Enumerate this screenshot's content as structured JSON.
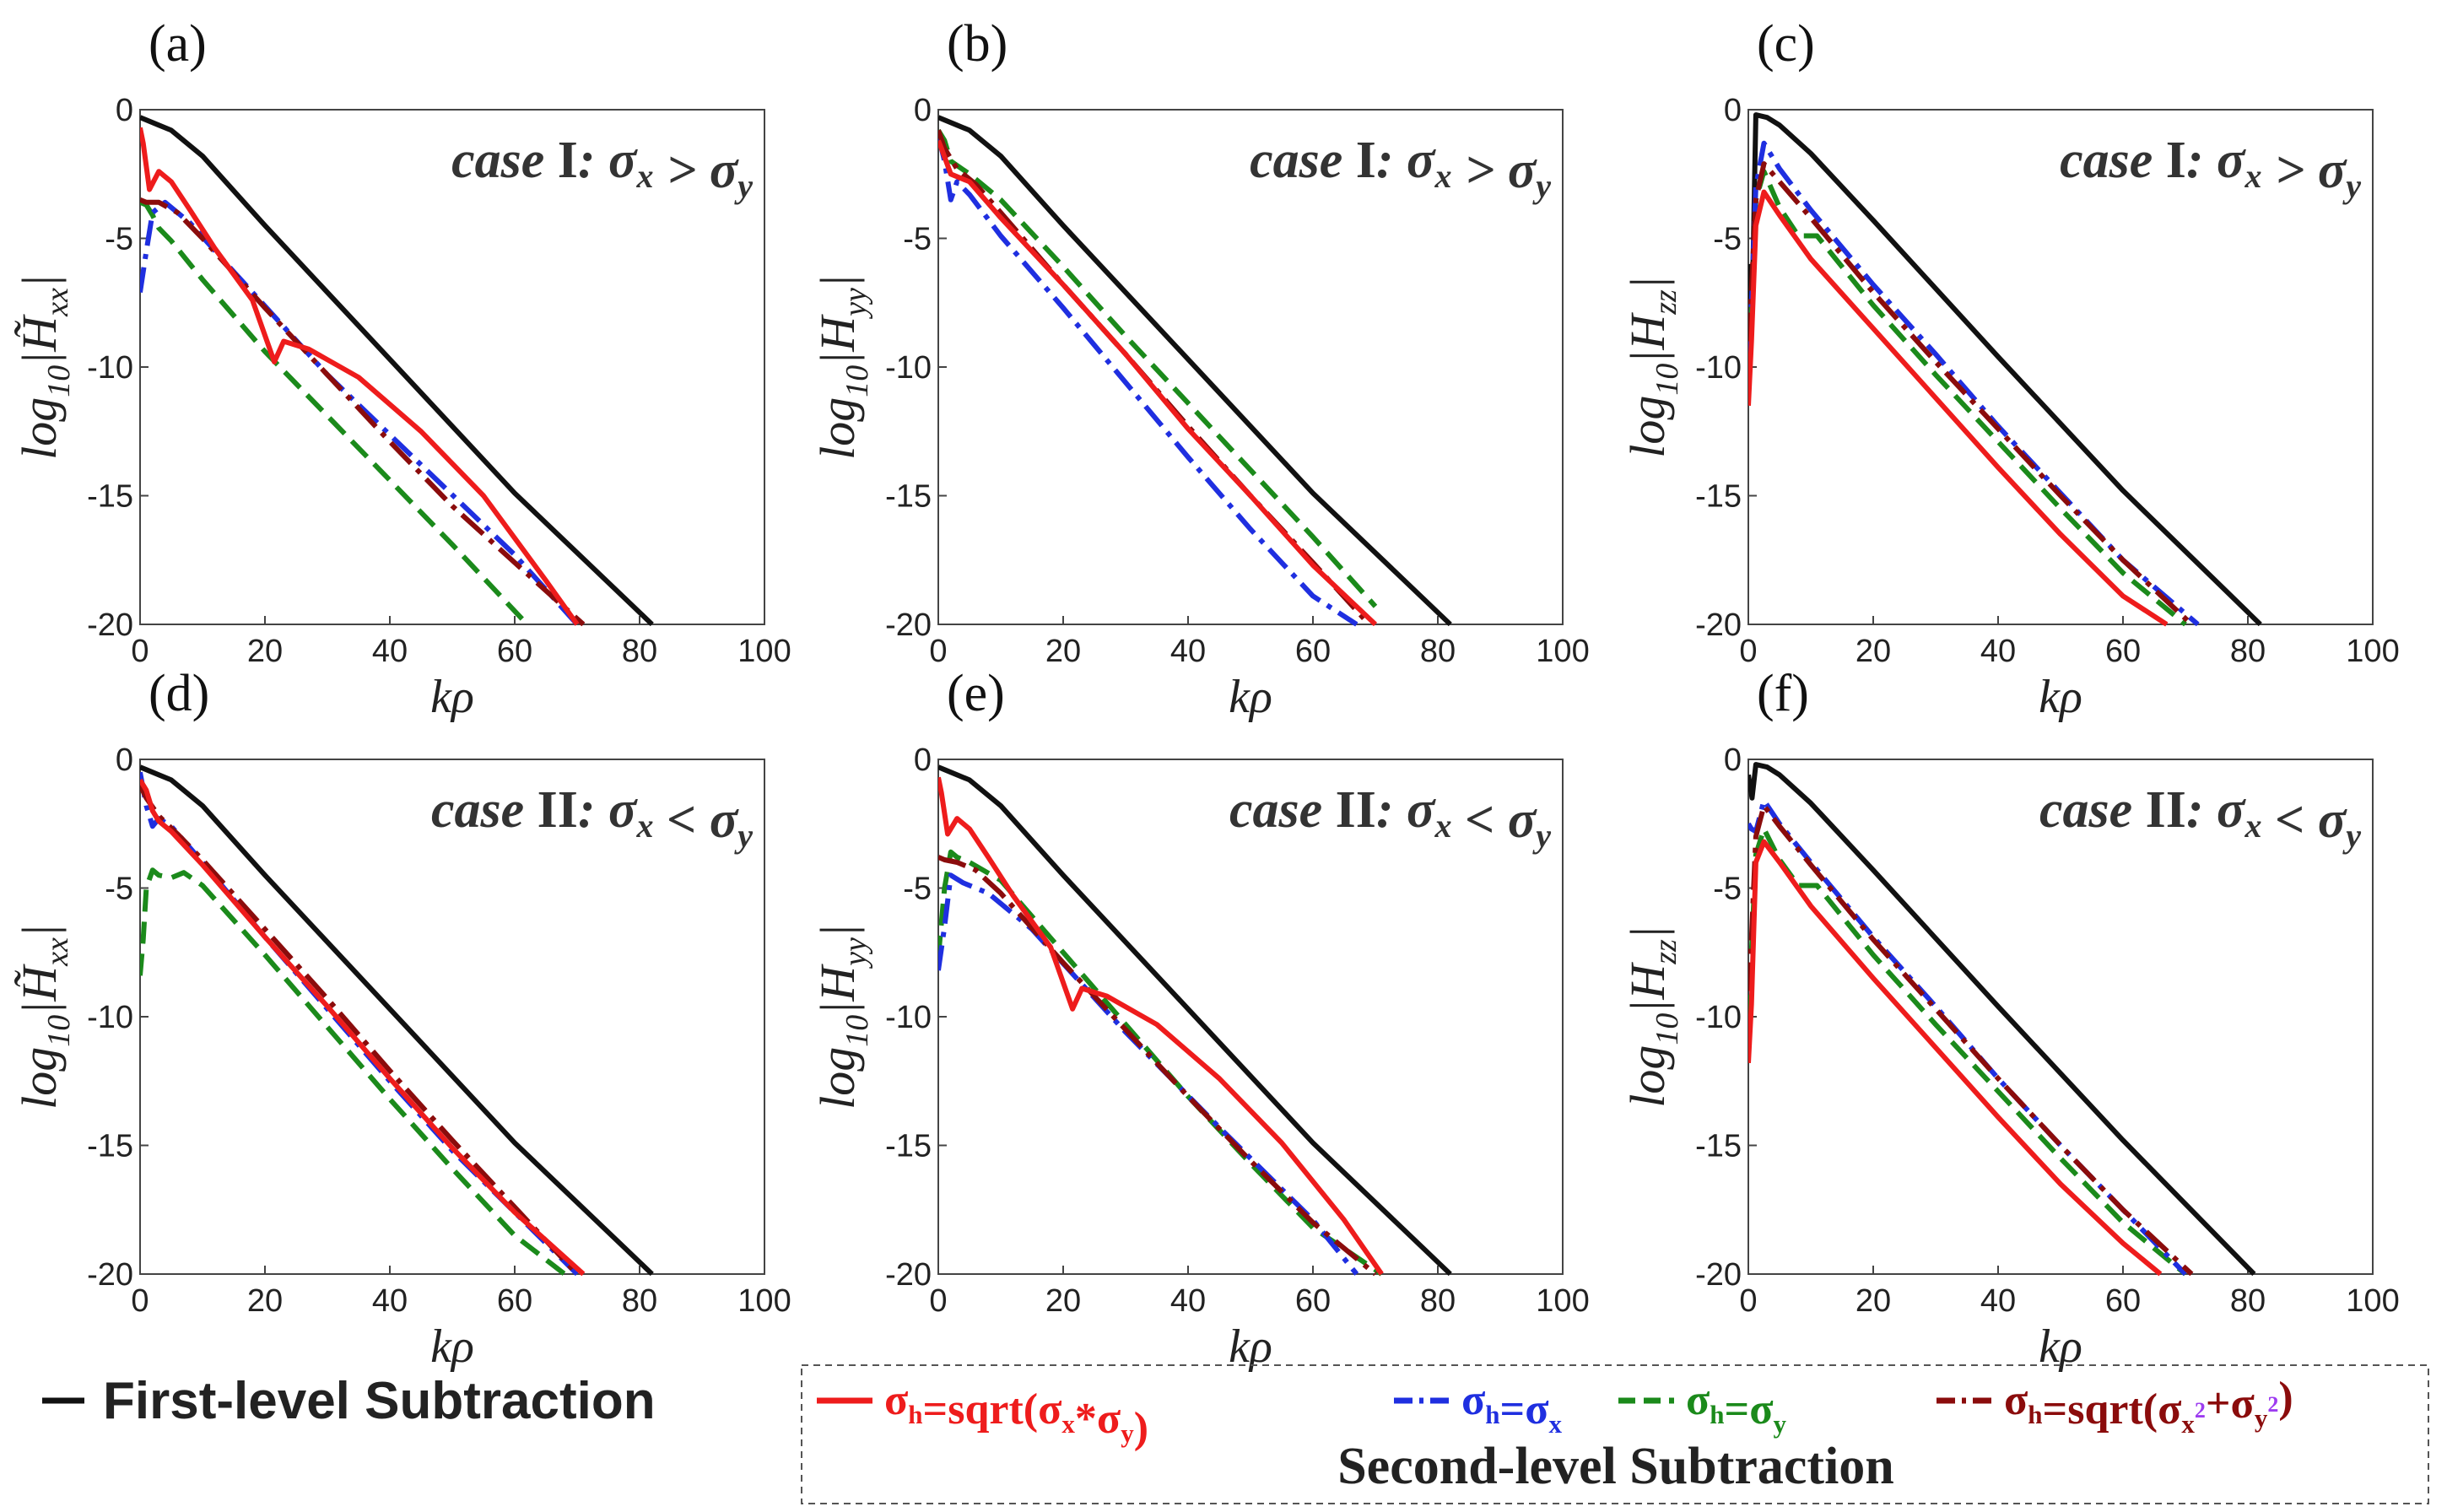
{
  "figure": {
    "legend_first": "First-level Subtraction",
    "legend_second_title": "Second-level Subtraction",
    "colors": {
      "first": "#111111",
      "red": "#ee1c1c",
      "blue": "#1f2fe0",
      "green": "#1b8a1b",
      "darkred": "#8b0c0c"
    },
    "series_legend": [
      {
        "key": "red",
        "name": "σh=sqrt(σx*σy)",
        "dash": "solid"
      },
      {
        "key": "blue",
        "name": "σh=σx",
        "dash": "dashdot"
      },
      {
        "key": "green",
        "name": "σh=σy",
        "dash": "dash"
      },
      {
        "key": "darkred",
        "name": "σh=sqrt(σx²+σy²)",
        "dash": "dashdot"
      }
    ]
  },
  "chart_data": [
    {
      "type": "line",
      "label": "(a)",
      "case": "case I: σx > σy",
      "ylabel": "log10|H̃xx|",
      "xlabel": "kρ",
      "xlim": [
        0,
        100
      ],
      "ylim": [
        -20,
        0
      ],
      "xticks": [
        "0",
        "20",
        "40",
        "60",
        "80",
        "100"
      ],
      "yticks": [
        "0",
        "-5",
        "-10",
        "-15",
        "-20"
      ],
      "series": [
        {
          "name": "First-level Subtraction",
          "key": "first",
          "x": [
            0,
            1,
            3,
            5,
            10,
            20,
            40,
            60,
            82
          ],
          "y": [
            -0.3,
            -0.4,
            -0.6,
            -0.8,
            -1.8,
            -4.5,
            -9.7,
            -14.9,
            -20
          ]
        },
        {
          "name": "σh=sqrt(σx*σy)",
          "key": "red",
          "x": [
            0,
            0.5,
            1.5,
            3,
            5,
            8,
            12,
            18,
            21.5,
            23,
            27,
            35,
            45,
            55,
            65,
            70
          ],
          "y": [
            -0.7,
            -1.3,
            -3.1,
            -2.4,
            -2.8,
            -3.9,
            -5.4,
            -7.4,
            -9.8,
            -9.0,
            -9.3,
            -10.4,
            -12.5,
            -15.0,
            -18.3,
            -20
          ]
        },
        {
          "name": "σh=σx",
          "key": "blue",
          "x": [
            0,
            1,
            2,
            4,
            8,
            15,
            30,
            45,
            60,
            70
          ],
          "y": [
            -7.1,
            -5.5,
            -4.0,
            -3.6,
            -4.4,
            -6.3,
            -10.3,
            -13.8,
            -17.3,
            -20
          ]
        },
        {
          "name": "σh=σy",
          "key": "green",
          "x": [
            0,
            1,
            2,
            3,
            5,
            10,
            20,
            30,
            40,
            50,
            62
          ],
          "y": [
            -3.6,
            -3.7,
            -4.1,
            -4.6,
            -5.1,
            -6.6,
            -9.4,
            -11.9,
            -14.4,
            -16.9,
            -20
          ]
        },
        {
          "name": "σh=sqrt(σx²+σy²)",
          "key": "darkred",
          "x": [
            0,
            1,
            3,
            6,
            10,
            20,
            30,
            40,
            50,
            60,
            71
          ],
          "y": [
            -3.5,
            -3.6,
            -3.6,
            -4.0,
            -5.0,
            -7.7,
            -10.3,
            -12.9,
            -15.4,
            -17.6,
            -20
          ]
        }
      ]
    },
    {
      "type": "line",
      "label": "(b)",
      "case": "case I: σx > σy",
      "ylabel": "log10|Hyy|",
      "xlabel": "kρ",
      "xlim": [
        0,
        100
      ],
      "ylim": [
        -20,
        0
      ],
      "xticks": [
        "0",
        "20",
        "40",
        "60",
        "80",
        "100"
      ],
      "yticks": [
        "0",
        "-5",
        "-10",
        "-15",
        "-20"
      ],
      "series": [
        {
          "name": "First-level Subtraction",
          "key": "first",
          "x": [
            0,
            1,
            3,
            5,
            10,
            20,
            40,
            60,
            82
          ],
          "y": [
            -0.3,
            -0.4,
            -0.6,
            -0.8,
            -1.8,
            -4.5,
            -9.7,
            -14.9,
            -20
          ]
        },
        {
          "name": "σh=sqrt(σx*σy)",
          "key": "red",
          "x": [
            0,
            0.5,
            2,
            5,
            10,
            20,
            30,
            40,
            50,
            60,
            70
          ],
          "y": [
            -1.2,
            -1.5,
            -2.5,
            -2.8,
            -4.2,
            -6.8,
            -9.5,
            -12.4,
            -15.0,
            -17.7,
            -20
          ]
        },
        {
          "name": "σh=σx",
          "key": "blue",
          "x": [
            0,
            1,
            2,
            3,
            5,
            10,
            20,
            30,
            40,
            50,
            60,
            67
          ],
          "y": [
            -1.0,
            -2.0,
            -3.5,
            -2.8,
            -3.3,
            -4.9,
            -7.7,
            -10.6,
            -13.5,
            -16.3,
            -18.9,
            -20
          ]
        },
        {
          "name": "σh=σy",
          "key": "green",
          "x": [
            0,
            1,
            2,
            5,
            10,
            20,
            30,
            40,
            50,
            60,
            70
          ],
          "y": [
            -0.8,
            -1.2,
            -2.0,
            -2.5,
            -3.5,
            -6.1,
            -8.8,
            -11.4,
            -14.0,
            -16.6,
            -19.3
          ]
        },
        {
          "name": "σh=sqrt(σx²+σy²)",
          "key": "darkred",
          "x": [
            0,
            1,
            3,
            6,
            10,
            20,
            30,
            40,
            50,
            60,
            69
          ],
          "y": [
            -0.8,
            -1.5,
            -2.3,
            -2.9,
            -4.0,
            -6.8,
            -9.5,
            -12.3,
            -15.0,
            -17.6,
            -20
          ]
        }
      ]
    },
    {
      "type": "line",
      "label": "(c)",
      "case": "case I: σx > σy",
      "ylabel": "log10|Hzz|",
      "xlabel": "kρ",
      "xlim": [
        0,
        100
      ],
      "ylim": [
        -20,
        0
      ],
      "xticks": [
        "0",
        "20",
        "40",
        "60",
        "80",
        "100"
      ],
      "yticks": [
        "0",
        "-5",
        "-10",
        "-15",
        "-20"
      ],
      "series": [
        {
          "name": "First-level Subtraction",
          "key": "first",
          "x": [
            0,
            0.6,
            1.2,
            3,
            5,
            10,
            20,
            40,
            60,
            82
          ],
          "y": [
            -6.0,
            -8.0,
            -0.2,
            -0.3,
            -0.6,
            -1.7,
            -4.3,
            -9.6,
            -14.8,
            -20
          ]
        },
        {
          "name": "σh=sqrt(σx*σy)",
          "key": "red",
          "x": [
            0,
            0.5,
            1.2,
            2.5,
            5,
            10,
            20,
            30,
            40,
            50,
            60,
            67
          ],
          "y": [
            -11.5,
            -9.0,
            -4.5,
            -3.2,
            -4.1,
            -5.8,
            -8.5,
            -11.2,
            -13.9,
            -16.5,
            -18.9,
            -20
          ]
        },
        {
          "name": "σh=σx",
          "key": "blue",
          "x": [
            0,
            0.5,
            1.2,
            2.5,
            5,
            10,
            20,
            30,
            40,
            50,
            60,
            72
          ],
          "y": [
            -9.5,
            -7.5,
            -3.0,
            -1.3,
            -2.3,
            -3.9,
            -6.8,
            -9.5,
            -12.3,
            -14.9,
            -17.5,
            -20
          ]
        },
        {
          "name": "σh=σy",
          "key": "green",
          "x": [
            0,
            0.5,
            1.2,
            2.5,
            5,
            8,
            11,
            20,
            30,
            40,
            50,
            60,
            70
          ],
          "y": [
            -10.5,
            -8.0,
            -3.5,
            -2.4,
            -3.8,
            -4.9,
            -4.9,
            -7.6,
            -10.3,
            -12.9,
            -15.5,
            -18.0,
            -20
          ]
        },
        {
          "name": "σh=sqrt(σx²+σy²)",
          "key": "darkred",
          "x": [
            0,
            0.5,
            1.2,
            2.5,
            5,
            10,
            20,
            30,
            40,
            50,
            60,
            71
          ],
          "y": [
            -9.0,
            -7.0,
            -3.5,
            -2.1,
            -2.8,
            -4.2,
            -7.1,
            -9.8,
            -12.4,
            -15.0,
            -17.5,
            -20
          ]
        }
      ]
    },
    {
      "type": "line",
      "label": "(d)",
      "case": "case II: σx < σy",
      "ylabel": "log10|H̃xx|",
      "xlabel": "kρ",
      "xlim": [
        0,
        100
      ],
      "ylim": [
        -20,
        0
      ],
      "xticks": [
        "0",
        "20",
        "40",
        "60",
        "80",
        "100"
      ],
      "yticks": [
        "0",
        "-5",
        "-10",
        "-15",
        "-20"
      ],
      "series": [
        {
          "name": "First-level Subtraction",
          "key": "first",
          "x": [
            0,
            1,
            3,
            5,
            10,
            20,
            40,
            60,
            82
          ],
          "y": [
            -0.3,
            -0.4,
            -0.6,
            -0.8,
            -1.8,
            -4.5,
            -9.7,
            -14.9,
            -20
          ]
        },
        {
          "name": "σh=sqrt(σx*σy)",
          "key": "red",
          "x": [
            0,
            1,
            2,
            3,
            5,
            10,
            20,
            30,
            40,
            50,
            60,
            71
          ],
          "y": [
            -0.8,
            -1.2,
            -2.0,
            -2.4,
            -2.8,
            -4.1,
            -6.9,
            -9.6,
            -12.4,
            -15.1,
            -17.6,
            -20
          ]
        },
        {
          "name": "σh=σx",
          "key": "blue",
          "x": [
            0,
            1,
            2,
            3,
            5,
            10,
            20,
            30,
            40,
            50,
            60,
            70
          ],
          "y": [
            -0.5,
            -1.8,
            -2.6,
            -2.3,
            -2.6,
            -4.0,
            -6.9,
            -9.7,
            -12.5,
            -15.2,
            -17.6,
            -20
          ]
        },
        {
          "name": "σh=σy",
          "key": "green",
          "x": [
            0,
            0.5,
            1,
            2,
            3,
            5,
            7,
            10,
            20,
            30,
            40,
            50,
            60,
            68
          ],
          "y": [
            -8.4,
            -7.0,
            -5.0,
            -4.3,
            -4.5,
            -4.6,
            -4.4,
            -4.9,
            -7.6,
            -10.4,
            -13.2,
            -15.9,
            -18.5,
            -20
          ]
        },
        {
          "name": "σh=sqrt(σx²+σy²)",
          "key": "darkred",
          "x": [
            0,
            1,
            3,
            6,
            10,
            20,
            30,
            40,
            50,
            60,
            70
          ],
          "y": [
            -1.0,
            -1.5,
            -2.2,
            -2.9,
            -3.9,
            -6.6,
            -9.3,
            -12.1,
            -14.8,
            -17.4,
            -20
          ]
        }
      ]
    },
    {
      "type": "line",
      "label": "(e)",
      "case": "case II: σx < σy",
      "ylabel": "log10|Hyy|",
      "xlabel": "kρ",
      "xlim": [
        0,
        100
      ],
      "ylim": [
        -20,
        0
      ],
      "xticks": [
        "0",
        "20",
        "40",
        "60",
        "80",
        "100"
      ],
      "yticks": [
        "0",
        "-5",
        "-10",
        "-15",
        "-20"
      ],
      "series": [
        {
          "name": "First-level Subtraction",
          "key": "first",
          "x": [
            0,
            1,
            3,
            5,
            10,
            20,
            40,
            60,
            82
          ],
          "y": [
            -0.3,
            -0.4,
            -0.6,
            -0.8,
            -1.8,
            -4.5,
            -9.7,
            -14.9,
            -20
          ]
        },
        {
          "name": "σh=sqrt(σx*σy)",
          "key": "red",
          "x": [
            0,
            0.5,
            1.5,
            3,
            5,
            8,
            12,
            18,
            21.5,
            23,
            27,
            35,
            45,
            55,
            65,
            71
          ],
          "y": [
            -0.7,
            -1.3,
            -2.9,
            -2.3,
            -2.7,
            -3.8,
            -5.3,
            -7.3,
            -9.7,
            -8.9,
            -9.2,
            -10.3,
            -12.4,
            -14.9,
            -17.9,
            -20
          ]
        },
        {
          "name": "σh=σx",
          "key": "blue",
          "x": [
            0,
            1,
            2,
            4,
            8,
            15,
            30,
            45,
            60,
            67
          ],
          "y": [
            -8.2,
            -6.5,
            -4.5,
            -4.8,
            -5.2,
            -6.6,
            -10.6,
            -14.3,
            -17.9,
            -20
          ]
        },
        {
          "name": "σh=σy",
          "key": "green",
          "x": [
            0,
            1,
            2,
            3,
            5,
            10,
            20,
            30,
            40,
            50,
            60,
            71
          ],
          "y": [
            -7.7,
            -5.0,
            -3.6,
            -3.8,
            -4.0,
            -4.7,
            -7.5,
            -10.3,
            -13.1,
            -15.7,
            -18.2,
            -20
          ]
        },
        {
          "name": "σh=sqrt(σx²+σy²)",
          "key": "darkred",
          "x": [
            0,
            1,
            3,
            6,
            10,
            20,
            30,
            40,
            50,
            60,
            70
          ],
          "y": [
            -3.8,
            -3.9,
            -4.0,
            -4.3,
            -5.2,
            -7.9,
            -10.5,
            -13.1,
            -15.6,
            -18.0,
            -20
          ]
        }
      ]
    },
    {
      "type": "line",
      "label": "(f)",
      "case": "case II: σx < σy",
      "ylabel": "log10|Hzz|",
      "xlabel": "kρ",
      "xlim": [
        0,
        100
      ],
      "ylim": [
        -20,
        0
      ],
      "xticks": [
        "0",
        "20",
        "40",
        "60",
        "80",
        "100"
      ],
      "yticks": [
        "0",
        "-5",
        "-10",
        "-15",
        "-20"
      ],
      "series": [
        {
          "name": "First-level Subtraction",
          "key": "first",
          "x": [
            0,
            0.6,
            1.2,
            3,
            5,
            10,
            20,
            40,
            60,
            81
          ],
          "y": [
            -0.6,
            -1.5,
            -0.2,
            -0.3,
            -0.6,
            -1.7,
            -4.3,
            -9.6,
            -14.8,
            -20
          ]
        },
        {
          "name": "σh=sqrt(σx*σy)",
          "key": "red",
          "x": [
            0,
            0.5,
            1.2,
            2.5,
            5,
            10,
            20,
            30,
            40,
            50,
            60,
            66
          ],
          "y": [
            -11.8,
            -9.5,
            -4.0,
            -3.2,
            -4.0,
            -5.7,
            -8.5,
            -11.2,
            -13.9,
            -16.5,
            -18.8,
            -20
          ]
        },
        {
          "name": "σh=σx",
          "key": "blue",
          "x": [
            0,
            0.5,
            1.2,
            2.5,
            5,
            10,
            20,
            30,
            40,
            50,
            60,
            70
          ],
          "y": [
            -2.5,
            -2.7,
            -2.8,
            -1.6,
            -2.5,
            -4.0,
            -6.9,
            -9.6,
            -12.4,
            -15.0,
            -17.5,
            -20
          ]
        },
        {
          "name": "σh=σy",
          "key": "green",
          "x": [
            0,
            0.5,
            1.2,
            2.5,
            5,
            8,
            11,
            20,
            30,
            40,
            50,
            60,
            70
          ],
          "y": [
            -10.0,
            -7.5,
            -3.7,
            -2.7,
            -3.9,
            -4.9,
            -4.9,
            -7.6,
            -10.3,
            -12.9,
            -15.5,
            -18.0,
            -20
          ]
        },
        {
          "name": "σh=sqrt(σx²+σy²)",
          "key": "darkred",
          "x": [
            0,
            0.5,
            1.2,
            2.5,
            5,
            10,
            20,
            30,
            40,
            50,
            60,
            71
          ],
          "y": [
            -9.0,
            -7.0,
            -3.0,
            -1.8,
            -2.6,
            -4.1,
            -7.0,
            -9.7,
            -12.4,
            -15.0,
            -17.5,
            -20
          ]
        }
      ]
    }
  ]
}
